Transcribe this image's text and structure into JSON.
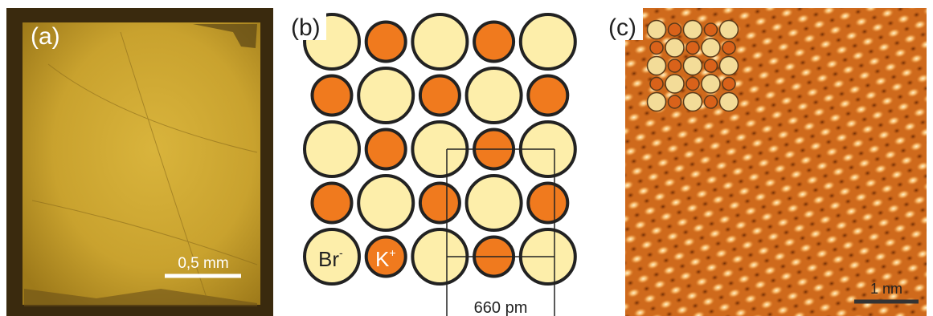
{
  "panels": [
    {
      "label": "(a)",
      "scale_bar": "0,5 mm"
    },
    {
      "label": "(b)",
      "ions": [
        {
          "symbol": "Br",
          "charge": "-"
        },
        {
          "symbol": "K",
          "charge": "+"
        }
      ],
      "dimension": "660 pm"
    },
    {
      "label": "(c)",
      "scale_bar": "1 nm"
    }
  ]
}
